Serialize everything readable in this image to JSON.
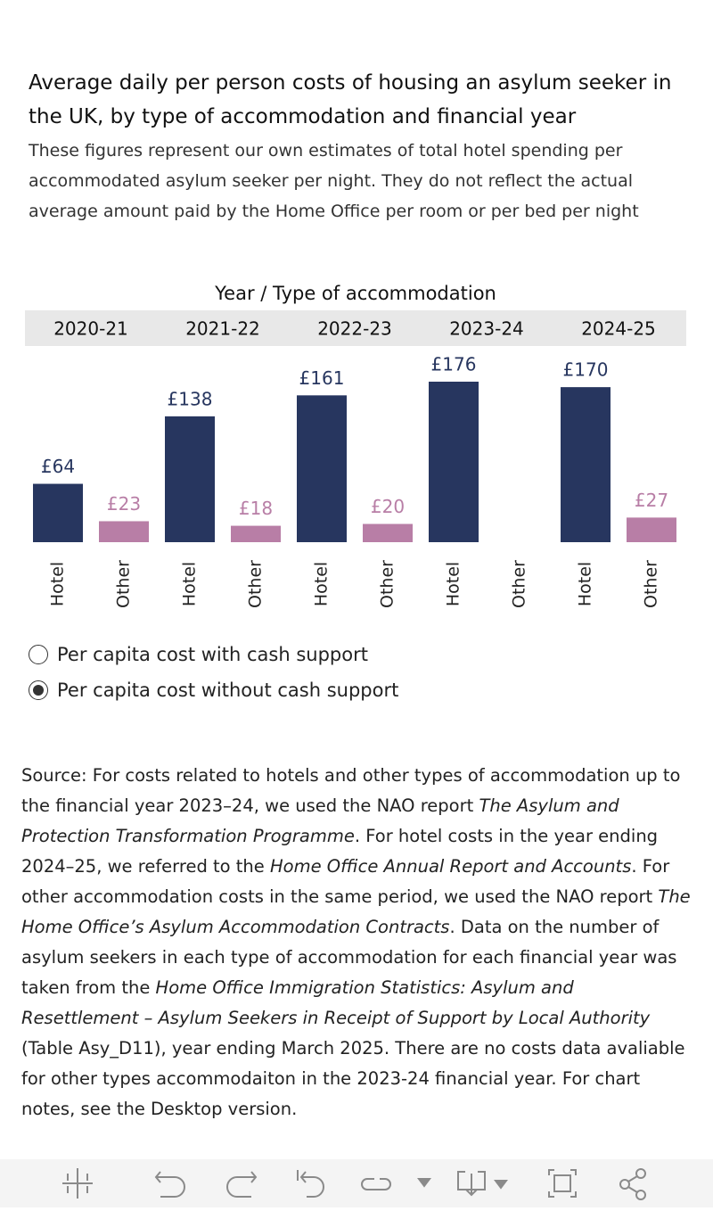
{
  "chart_data": {
    "type": "bar",
    "title": "Average daily per person costs of housing an asylum seeker in the UK, by type of accommodation and financial year",
    "subtitle": "These figures represent our own estimates of total hotel spending per accommodated asylum seeker per night. They do not reflect the actual average amount paid by the Home Office per room or per bed per night",
    "header": "Year / Type of accommodation",
    "categories": [
      "2020-21",
      "2021-22",
      "2022-23",
      "2023-24",
      "2024-25"
    ],
    "series": [
      {
        "name": "Hotel",
        "color": "#27365f",
        "values": [
          64,
          138,
          161,
          176,
          170
        ],
        "value_labels": [
          "£64",
          "£138",
          "£161",
          "£176",
          "£170"
        ]
      },
      {
        "name": "Other",
        "color": "#b87ea6",
        "values": [
          23,
          18,
          20,
          null,
          27
        ],
        "value_labels": [
          "£23",
          "£18",
          "£20",
          null,
          "£27"
        ]
      }
    ]
  },
  "options": [
    {
      "label": "Per capita cost with cash support",
      "selected": false
    },
    {
      "label": "Per capita cost without cash support",
      "selected": true
    }
  ],
  "source": [
    {
      "text": "Source: For costs related to hotels and other types of accommodation up to the financial year 2023–24, we used the NAO report ",
      "italic": false
    },
    {
      "text": "The Asylum and Protection Transformation Programme",
      "italic": true
    },
    {
      "text": ". For hotel costs in the year ending 2024–25, we referred to the ",
      "italic": false
    },
    {
      "text": "Home Office Annual Report and Accounts",
      "italic": true
    },
    {
      "text": ". For other accommodation costs in the same period, we used the NAO report ",
      "italic": false
    },
    {
      "text": "The Home Office’s Asylum Accommodation Contracts",
      "italic": true
    },
    {
      "text": ". Data on the number of asylum seekers in each type of accommodation for each financial year was taken from the ",
      "italic": false
    },
    {
      "text": "Home Office Immigration Statistics: Asylum and Resettlement – Asylum Seekers in Receipt of Support by Local Authority",
      "italic": true
    },
    {
      "text": " (Table Asy_D11), year ending March 2025. There are no costs data avaliable for other types accommodaiton in the 2023-24 financial year. For chart notes, see the Desktop version.",
      "italic": false
    }
  ]
}
